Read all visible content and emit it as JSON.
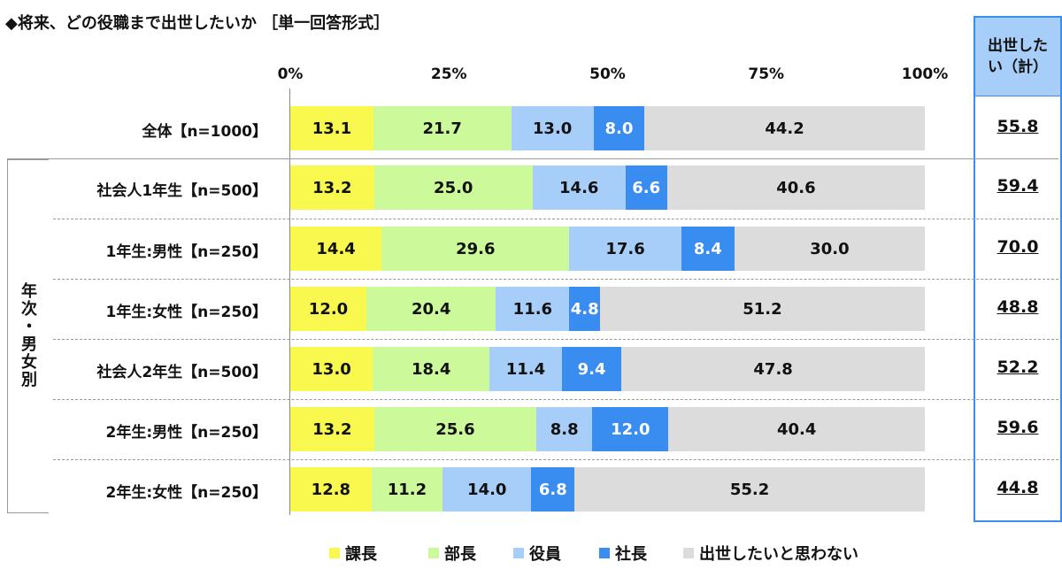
{
  "chart_data": {
    "type": "bar",
    "stacked": true,
    "orientation": "horizontal",
    "title": "◆将来、どの役職まで出世したいか ［単一回答形式］",
    "xlim": [
      0,
      100
    ],
    "ticks": [
      "0%",
      "25%",
      "50%",
      "75%",
      "100%"
    ],
    "group_label": "年次・男女別",
    "total_header": "出世したい（計）",
    "series": [
      {
        "name": "課長",
        "color": "#f8f84e"
      },
      {
        "name": "部長",
        "color": "#ccf99a"
      },
      {
        "name": "役員",
        "color": "#a6cef8"
      },
      {
        "name": "社長",
        "color": "#3a8df0"
      },
      {
        "name": "出世したいと思わない",
        "color": "#dcdcdc"
      }
    ],
    "rows": [
      {
        "label": "全体【n=1000】",
        "values": [
          13.1,
          21.7,
          13.0,
          8.0,
          44.2
        ],
        "total": "55.8"
      },
      {
        "label": "社会人1年生【n=500】",
        "values": [
          13.2,
          25.0,
          14.6,
          6.6,
          40.6
        ],
        "total": "59.4"
      },
      {
        "label": "1年生:男性【n=250】",
        "values": [
          14.4,
          29.6,
          17.6,
          8.4,
          30.0
        ],
        "total": "70.0"
      },
      {
        "label": "1年生:女性【n=250】",
        "values": [
          12.0,
          20.4,
          11.6,
          4.8,
          51.2
        ],
        "total": "48.8"
      },
      {
        "label": "社会人2年生【n=500】",
        "values": [
          13.0,
          18.4,
          11.4,
          9.4,
          47.8
        ],
        "total": "52.2"
      },
      {
        "label": "2年生:男性【n=250】",
        "values": [
          13.2,
          25.6,
          8.8,
          12.0,
          40.4
        ],
        "total": "59.6"
      },
      {
        "label": "2年生:女性【n=250】",
        "values": [
          12.8,
          11.2,
          14.0,
          6.8,
          55.2
        ],
        "total": "44.8"
      }
    ]
  }
}
